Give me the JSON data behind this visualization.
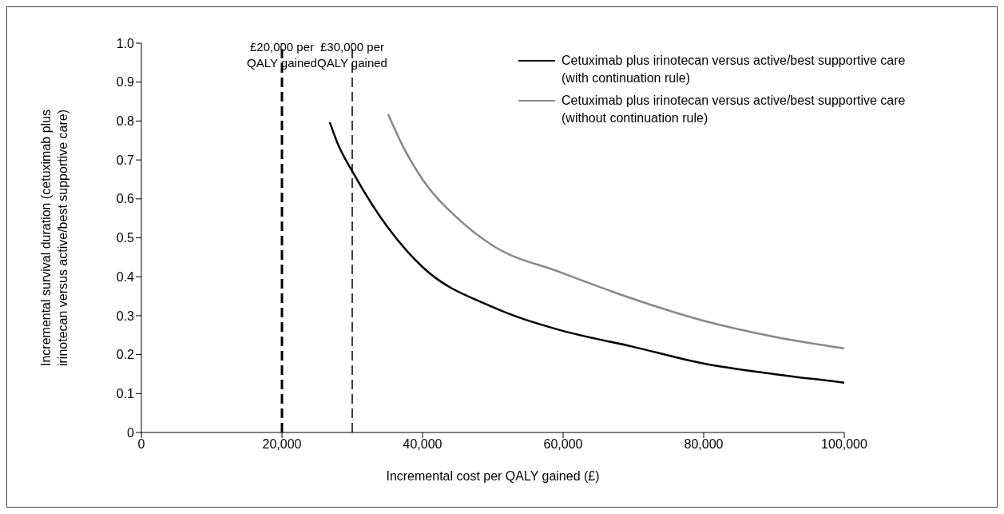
{
  "chart_data": {
    "type": "line",
    "xlabel": "Incremental cost per QALY gained (£)",
    "ylabel": "Incremental survival duration (cetuximab plus irinotecan versus active/best supportive care)",
    "xlim": [
      0,
      100000
    ],
    "xticks": [
      0,
      {
        "value": 20000,
        "label": "20,000"
      },
      {
        "value": 40000,
        "label": "40,000"
      },
      {
        "value": 60000,
        "label": "60,000"
      },
      {
        "value": 80000,
        "label": "80,000"
      },
      {
        "value": 100000,
        "label": "100,000"
      }
    ],
    "ylim": [
      0,
      1
    ],
    "yticks": [
      0,
      0.1,
      0.2,
      0.3,
      0.4,
      0.5,
      0.6,
      0.7,
      0.8,
      0.9,
      {
        "value": 1,
        "label": "1.0"
      }
    ],
    "grid": false,
    "legend": "top right",
    "marker": "none",
    "line_style": "solid",
    "series": [
      {
        "name": "Cetuximab plus irinotecan versus active/best supportive care (with continuation rule)",
        "color": "#000000",
        "x": [
          26800,
          28000,
          30000,
          35000,
          40000,
          50000,
          59550,
          70000,
          80000,
          90000,
          100000
        ],
        "values": [
          0.797,
          0.739,
          0.671,
          0.528,
          0.425,
          0.322,
          0.263,
          0.22,
          0.177,
          0.15,
          0.128
        ]
      },
      {
        "name": "Cetuximab plus irinotecan versus active/best supportive care (without continuation rule)",
        "color": "#888888",
        "x": [
          35100,
          37500,
          40000,
          45000,
          50000,
          59550,
          70000,
          80000,
          90000,
          100000
        ],
        "values": [
          0.818,
          0.725,
          0.65,
          0.55,
          0.48,
          0.412,
          0.343,
          0.287,
          0.246,
          0.216
        ]
      }
    ],
    "ref_lines": [
      {
        "axis": "x",
        "value": 20000,
        "label": "£20,000 per QALY  gained",
        "color": "#000000",
        "line_style": "dashed"
      },
      {
        "axis": "x",
        "value": 30000,
        "label": "£30,000 per QALY gained",
        "color": "#000000",
        "line_style": "dashed"
      }
    ]
  }
}
